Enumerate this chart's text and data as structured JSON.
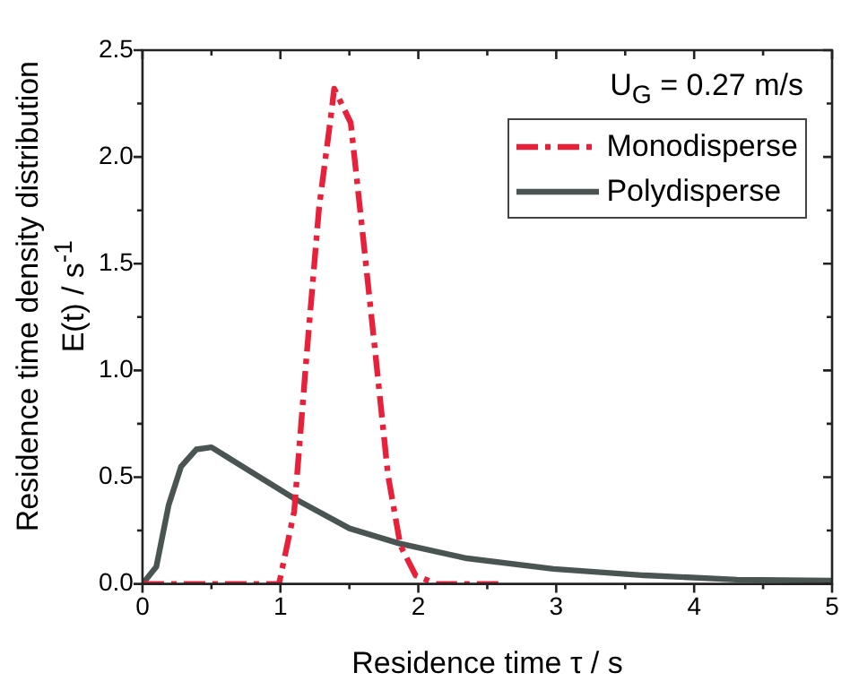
{
  "chart_data": {
    "type": "line",
    "xlabel": "Residence time τ / s",
    "ylabel": "Residence time density distribution\nE(t) / s$^{-1}$",
    "annotations": [
      "U$_{G}$ = 0.27 m/s"
    ],
    "xlim": [
      0,
      5
    ],
    "ylim": [
      0,
      2.5
    ],
    "xticks": [
      0,
      {
        "value": 0.5,
        "label": null
      },
      1,
      {
        "value": 1.5,
        "label": null
      },
      2,
      {
        "value": 2.5,
        "label": null
      },
      3,
      {
        "value": 3.5,
        "label": null
      },
      4,
      {
        "value": 4.5,
        "label": null
      },
      5
    ],
    "yticks": [
      "0.0",
      {
        "value": 0.25,
        "label": null
      },
      {
        "value": 0.5,
        "label": "0.5"
      },
      {
        "value": 0.75,
        "label": null
      },
      {
        "value": 1,
        "label": "1.0"
      },
      {
        "value": 1.25,
        "label": null
      },
      {
        "value": 1.5,
        "label": "1.5"
      },
      {
        "value": 1.75,
        "label": null
      },
      {
        "value": 2,
        "label": "2.0"
      },
      {
        "value": 2.25,
        "label": null
      },
      {
        "value": 2.5,
        "label": "2.5"
      }
    ],
    "grid": false,
    "legend": "top right",
    "marker": "none",
    "series": [
      {
        "name": "Monodisperse",
        "color": "#e8203a",
        "line_style": "dashed",
        "x": [
          0,
          0.99,
          1.1,
          1.19,
          1.28,
          1.37,
          1.39,
          1.51,
          1.6,
          1.69,
          1.78,
          1.87,
          1.98,
          2.13,
          2.62
        ],
        "values": [
          0,
          0,
          0.34,
          1.07,
          1.76,
          2.21,
          2.32,
          2.16,
          1.62,
          1.07,
          0.51,
          0.18,
          0.04,
          0,
          0
        ]
      },
      {
        "name": "Polydisperse",
        "color": "#4a5553",
        "line_style": "solid",
        "x": [
          0,
          0.1,
          0.19,
          0.28,
          0.39,
          0.5,
          0.75,
          1.1,
          1.5,
          1.86,
          2.35,
          2.98,
          3.64,
          4.31,
          5
        ],
        "values": [
          0,
          0.08,
          0.37,
          0.55,
          0.63,
          0.64,
          0.54,
          0.4,
          0.26,
          0.19,
          0.12,
          0.07,
          0.04,
          0.02,
          0.015
        ]
      }
    ]
  }
}
